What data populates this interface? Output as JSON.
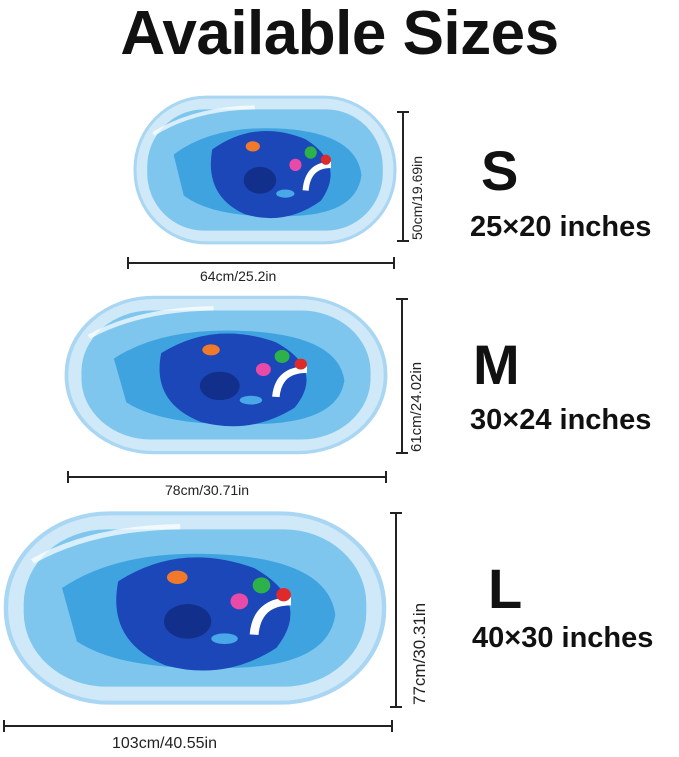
{
  "title": "Available Sizes",
  "colors": {
    "water_light": "#7ec6ee",
    "water_mid": "#3fa3e0",
    "water_dark": "#1c47b8",
    "rim": "#cfe9f8"
  },
  "sizes": [
    {
      "label": "S",
      "inches": "25×20 inches",
      "width": "64cm/25.2in",
      "height": "50cm/19.69in"
    },
    {
      "label": "M",
      "inches": "30×24 inches",
      "width": "78cm/30.71in",
      "height": "61cm/24.02in"
    },
    {
      "label": "L",
      "inches": "40×30 inches",
      "width": "103cm/40.55in",
      "height": "77cm/30.31in"
    }
  ]
}
